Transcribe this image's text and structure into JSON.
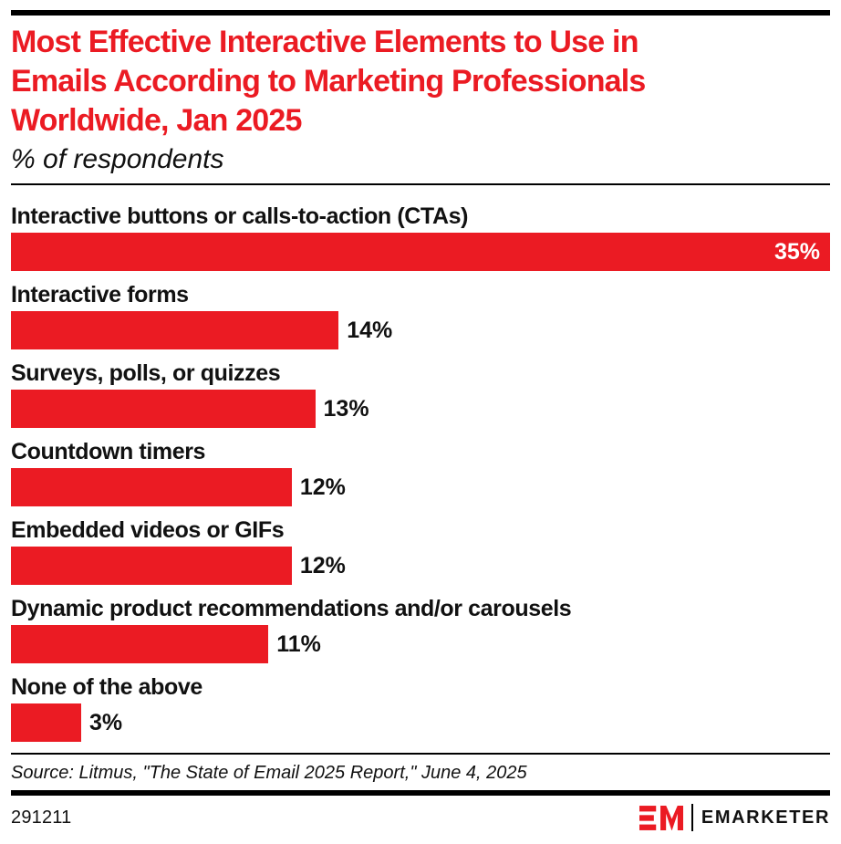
{
  "colors": {
    "accent_red": "#EB1B23",
    "rule_black": "#000000",
    "text_black": "#111111",
    "value_inside_white": "#ffffff"
  },
  "header": {
    "title": "Most Effective Interactive Elements to Use in Emails According to Marketing Professionals Worldwide, Jan 2025",
    "title_lines": [
      "Most Effective Interactive Elements to Use in",
      "Emails According to Marketing Professionals",
      "Worldwide, Jan 2025"
    ],
    "subtitle": "% of respondents"
  },
  "chart_data": {
    "type": "bar",
    "orientation": "horizontal",
    "title": "Most Effective Interactive Elements to Use in Emails According to Marketing Professionals Worldwide, Jan 2025",
    "subtitle": "% of respondents",
    "xlabel": "",
    "ylabel": "",
    "grid": false,
    "xlim": [
      0,
      35
    ],
    "bar_color": "#EB1B23",
    "categories": [
      "Interactive buttons or calls-to-action (CTAs)",
      "Interactive forms",
      "Surveys, polls, or quizzes",
      "Countdown timers",
      "Embedded videos or GIFs",
      "Dynamic product recommendations and/or carousels",
      "None of the above"
    ],
    "values": [
      35,
      14,
      13,
      12,
      12,
      11,
      3
    ],
    "value_labels": [
      "35%",
      "14%",
      "13%",
      "12%",
      "12%",
      "11%",
      "3%"
    ],
    "value_label_position": [
      "inside-right",
      "outside",
      "outside",
      "outside",
      "outside",
      "outside",
      "outside"
    ]
  },
  "footer": {
    "source": "Source: Litmus, \"The State of Email 2025 Report,\" June 4, 2025",
    "chart_id": "291211",
    "logo_mark": "EM",
    "logo_text": "EMARKETER"
  }
}
